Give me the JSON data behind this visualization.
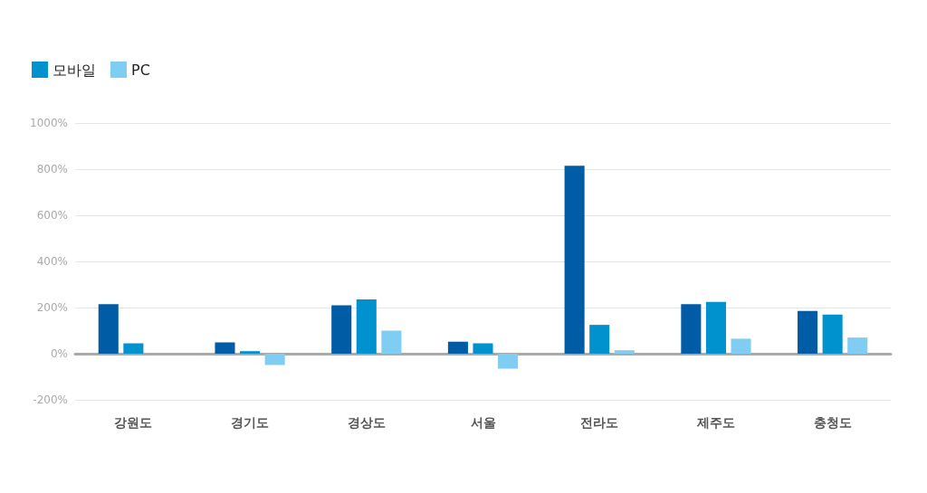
{
  "chart_data": {
    "type": "bar",
    "categories": [
      "강원도",
      "경기도",
      "경상도",
      "서울",
      "전라도",
      "제주도",
      "충청도"
    ],
    "series": [
      {
        "color": "#005ca5",
        "values": [
          215,
          49,
          210,
          52,
          815,
          215,
          185
        ]
      },
      {
        "name": "모바일",
        "color": "#0091cf",
        "values": [
          45,
          11,
          235,
          45,
          125,
          225,
          170
        ]
      },
      {
        "name": "PC",
        "color": "#7fcdf2",
        "values": [
          null,
          -49,
          100,
          -65,
          15,
          65,
          70
        ]
      }
    ],
    "ylim": [
      -200,
      1000
    ],
    "yticks": [
      {
        "value": -200,
        "label": "-200%"
      },
      {
        "value": 0,
        "label": "0%"
      },
      {
        "value": 200,
        "label": "200%"
      },
      {
        "value": 400,
        "label": "400%"
      },
      {
        "value": 600,
        "label": "600%"
      },
      {
        "value": 800,
        "label": "800%"
      },
      {
        "value": 1000,
        "label": "1000%"
      }
    ],
    "grid": "y",
    "legend": "top left"
  }
}
